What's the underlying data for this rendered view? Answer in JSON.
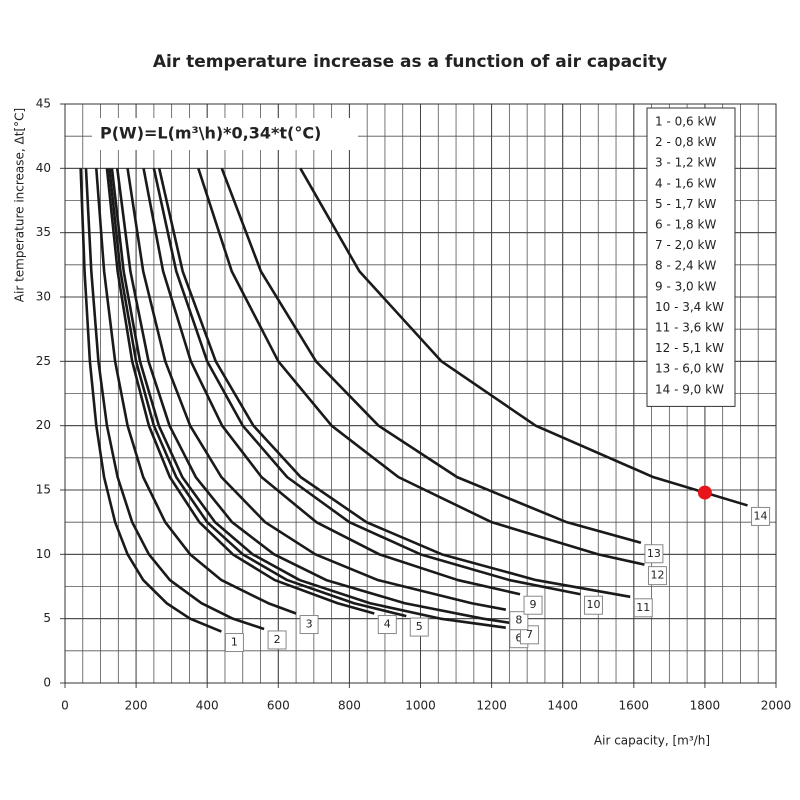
{
  "chart_data": {
    "type": "line",
    "title": "Air temperature increase as a function of air capacity",
    "formula": "P(W)=L(m³\\h)*0,34*t(°C)",
    "x_label": "Air capacity, [m³/h]",
    "y_label": "Air temperature increase, Δt[°C]",
    "xlim": [
      0,
      2000
    ],
    "ylim": [
      0,
      45
    ],
    "xticks": [
      0,
      200,
      400,
      600,
      800,
      1000,
      1200,
      1400,
      1600,
      1800,
      2000
    ],
    "yticks": [
      0,
      5,
      10,
      15,
      20,
      25,
      30,
      35,
      40,
      45
    ],
    "grid": true,
    "minor_grid": {
      "x": 50,
      "y": 2.5
    },
    "legend": "top-right",
    "highlight": {
      "x": 1800,
      "y": 14.8,
      "color": "#e8141b"
    },
    "series": [
      {
        "name": "1 - 0,6 kW",
        "label": "1",
        "color": "#1a1a1a",
        "x": [
          44,
          55,
          70,
          88,
          110,
          141,
          176,
          220,
          286,
          352,
          440
        ],
        "values": [
          40,
          32,
          25,
          20,
          16,
          12.5,
          10,
          8,
          6.2,
          5,
          4
        ]
      },
      {
        "name": "2 - 0,8 kW",
        "label": "2",
        "color": "#1a1a1a",
        "x": [
          59,
          74,
          94,
          118,
          148,
          189,
          236,
          295,
          384,
          472,
          560
        ],
        "values": [
          40,
          32,
          25,
          20,
          16,
          12.5,
          10,
          8,
          6.2,
          5,
          4.2
        ]
      },
      {
        "name": "3 - 1,2 kW",
        "label": "3",
        "color": "#1a1a1a",
        "x": [
          88,
          110,
          141,
          176,
          220,
          282,
          352,
          440,
          572,
          650
        ],
        "values": [
          40,
          32,
          25,
          20,
          16,
          12.5,
          10,
          8,
          6.2,
          5.4
        ]
      },
      {
        "name": "4 - 1,6 kW",
        "label": "4",
        "color": "#1a1a1a",
        "x": [
          118,
          148,
          189,
          236,
          295,
          378,
          472,
          590,
          767,
          870
        ],
        "values": [
          40,
          32,
          25,
          20,
          16,
          12.5,
          10,
          8,
          6.2,
          5.4
        ]
      },
      {
        "name": "5 - 1,7 kW",
        "label": "5",
        "color": "#1a1a1a",
        "x": [
          125,
          156,
          200,
          250,
          313,
          400,
          500,
          625,
          813,
          960
        ],
        "values": [
          40,
          32,
          25,
          20,
          16,
          12.5,
          10,
          8,
          6.2,
          5.2
        ]
      },
      {
        "name": "6 - 1,8 kW",
        "label": "6",
        "color": "#1a1a1a",
        "x": [
          132,
          165,
          211,
          264,
          330,
          422,
          528,
          660,
          858,
          1056,
          1240
        ],
        "values": [
          40,
          32,
          25,
          20,
          16,
          12.5,
          10,
          8,
          6.2,
          5,
          4.3
        ]
      },
      {
        "name": "7 - 2,0 kW",
        "label": "7",
        "color": "#1a1a1a",
        "x": [
          147,
          184,
          235,
          294,
          368,
          470,
          588,
          735,
          956,
          1176,
          1270
        ],
        "values": [
          40,
          32,
          25,
          20,
          16,
          12.5,
          10,
          8,
          6.2,
          5,
          4.6
        ]
      },
      {
        "name": "8 - 2,4 kW",
        "label": "8",
        "color": "#1a1a1a",
        "x": [
          176,
          220,
          282,
          352,
          440,
          563,
          704,
          880,
          1144,
          1240
        ],
        "values": [
          40,
          32,
          25,
          20,
          16,
          12.5,
          10,
          8,
          6.2,
          5.7
        ]
      },
      {
        "name": "9 - 3,0 kW",
        "label": "9",
        "color": "#1a1a1a",
        "x": [
          221,
          276,
          354,
          442,
          553,
          707,
          884,
          1105,
          1280
        ],
        "values": [
          40,
          32,
          25,
          20,
          16,
          12.5,
          10,
          8,
          6.9
        ]
      },
      {
        "name": "10 - 3,4 kW",
        "label": "10",
        "color": "#1a1a1a",
        "x": [
          250,
          313,
          400,
          500,
          625,
          800,
          1000,
          1250,
          1450
        ],
        "values": [
          40,
          32,
          25,
          20,
          16,
          12.5,
          10,
          8,
          6.9
        ]
      },
      {
        "name": "11 - 3,6 kW",
        "label": "11",
        "color": "#1a1a1a",
        "x": [
          265,
          331,
          424,
          530,
          663,
          848,
          1060,
          1325,
          1590
        ],
        "values": [
          40,
          32,
          25,
          20,
          16,
          12.5,
          10,
          8,
          6.7
        ]
      },
      {
        "name": "12 - 5,1 kW",
        "label": "12",
        "color": "#1a1a1a",
        "x": [
          375,
          469,
          600,
          750,
          938,
          1200,
          1500,
          1630
        ],
        "values": [
          40,
          32,
          25,
          20,
          16,
          12.5,
          10,
          9.2
        ]
      },
      {
        "name": "13 - 6,0 kW",
        "label": "13",
        "color": "#1a1a1a",
        "x": [
          441,
          551,
          706,
          882,
          1103,
          1411,
          1620
        ],
        "values": [
          40,
          32,
          25,
          20,
          16,
          12.5,
          10.9
        ]
      },
      {
        "name": "14 - 9,0 kW",
        "label": "14",
        "color": "#1a1a1a",
        "x": [
          662,
          828,
          1059,
          1324,
          1655,
          1920
        ],
        "values": [
          40,
          32,
          25,
          20,
          16,
          13.8
        ]
      }
    ]
  }
}
